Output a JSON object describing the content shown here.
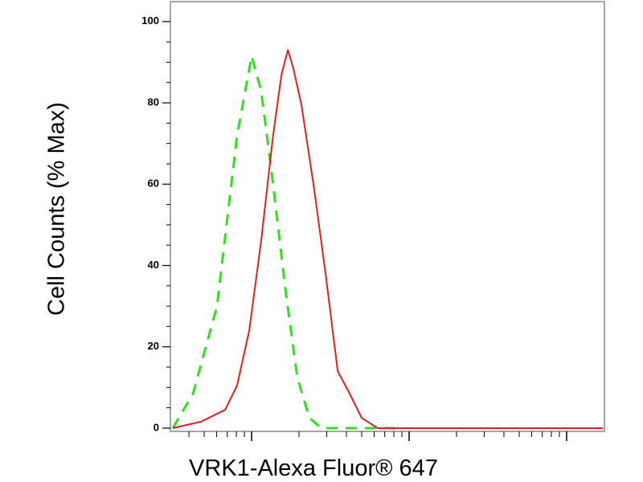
{
  "chart_data": {
    "type": "line",
    "ylabel": "Cell Counts (% Max)",
    "xlabel": "VRK1-Alexa Fluor® 647",
    "log_x": true,
    "xlim": [
      3.05,
      1738
    ],
    "xticks": [
      10,
      100,
      1000
    ],
    "ylim": [
      -0.8,
      104.9
    ],
    "yticks": [
      0,
      20,
      40,
      60,
      80,
      100
    ],
    "series": [
      {
        "color": "#33dd22",
        "line_style": "dashed",
        "x": [
          3.16,
          4.25,
          6.03,
          8.09,
          10,
          11.5,
          13.7,
          16.4,
          19.5,
          23.3,
          27.8,
          90
        ],
        "values": [
          0,
          8.5,
          30,
          72,
          91.5,
          83,
          60,
          34,
          12.5,
          2.5,
          0,
          0
        ]
      },
      {
        "color": "#e02020",
        "line_style": "solid",
        "x": [
          3.16,
          4.77,
          6.79,
          8.09,
          9.66,
          11.5,
          13.7,
          15.5,
          17.0,
          18.4,
          20.7,
          24.7,
          29.5,
          35.2,
          41.9,
          50.0,
          63.2,
          1698
        ],
        "values": [
          0,
          1.6,
          4.5,
          10.5,
          24,
          46,
          72,
          87,
          93,
          88.5,
          79.6,
          60,
          38,
          14,
          8.5,
          2.5,
          0,
          0
        ]
      }
    ]
  }
}
